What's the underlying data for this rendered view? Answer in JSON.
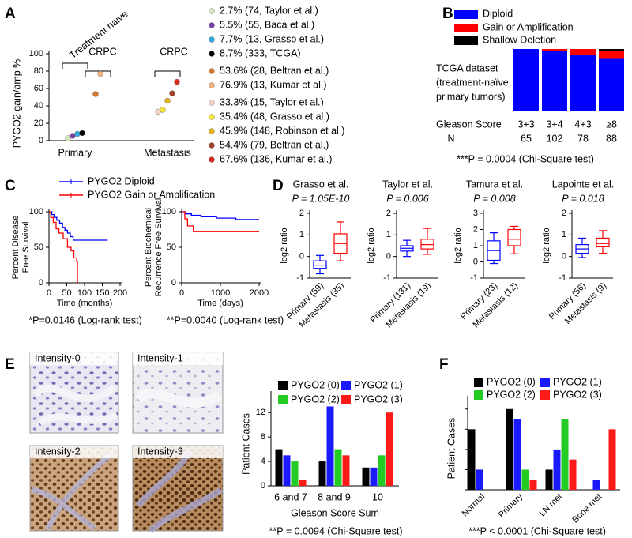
{
  "chart_data": [
    {
      "panel": "A",
      "type": "scatter",
      "ylabel": "PYGO2 gain/amp %",
      "categories": [
        "Primary",
        null,
        "Metastasis"
      ],
      "brackets": [
        "Treatment naive",
        "CRPC",
        "CRPC"
      ],
      "ylim": [
        0,
        100
      ],
      "yticks": [
        0,
        20,
        40,
        60,
        80,
        100
      ],
      "series": [
        {
          "name": "2.7% (74, Taylor et al.)",
          "color": "#d3e6bb",
          "values": [
            2.7,
            null,
            null
          ]
        },
        {
          "name": "5.5% (55, Baca et al.)",
          "color": "#7b3fa8",
          "values": [
            5.5,
            null,
            null
          ]
        },
        {
          "name": "7.7% (13, Grasso et al.)",
          "color": "#2fa8e0",
          "values": [
            7.7,
            null,
            null
          ]
        },
        {
          "name": "8.7% (333, TCGA)",
          "color": "#000000",
          "values": [
            8.7,
            null,
            null
          ]
        },
        {
          "name": "53.6% (28, Beltran et al.)",
          "color": "#d9772a",
          "values": [
            null,
            53.6,
            null
          ]
        },
        {
          "name": "76.9% (13, Kumar et al.)",
          "color": "#f4b27e",
          "values": [
            null,
            76.9,
            null
          ]
        },
        {
          "name": "33.3% (15, Taylor et al.)",
          "color": "#f4d2c6",
          "values": [
            null,
            null,
            33.3
          ]
        },
        {
          "name": "35.4% (48, Grasso et al.)",
          "color": "#f7e43a",
          "values": [
            null,
            null,
            35.4
          ]
        },
        {
          "name": "45.9% (148, Robinson  et al.)",
          "color": "#e8b21f",
          "values": [
            null,
            null,
            45.9
          ]
        },
        {
          "name": "54.4% (79, Beltran et al.)",
          "color": "#a2402a",
          "values": [
            null,
            null,
            54.4
          ]
        },
        {
          "name": "67.6% (136, Kumar et al.)",
          "color": "#dc2a1c",
          "values": [
            null,
            null,
            67.6
          ]
        }
      ]
    },
    {
      "panel": "B",
      "type": "bar",
      "stacked": true,
      "annotation": [
        "TCGA dataset",
        "(treatment-naïve,",
        "primary tumors)"
      ],
      "xlabel": "Gleason Score",
      "categories": [
        "3+3",
        "3+4",
        "4+3",
        "≥8"
      ],
      "count_label": "N",
      "counts": [
        65,
        102,
        78,
        88
      ],
      "ylim": [
        0,
        100
      ],
      "series": [
        {
          "name": "Diploid",
          "color": "#0000ff",
          "values": [
            100,
            97,
            90,
            84
          ]
        },
        {
          "name": "Gain or Amplification",
          "color": "#ff0000",
          "values": [
            0,
            3,
            10,
            13
          ]
        },
        {
          "name": "Shallow Deletion",
          "color": "#000000",
          "values": [
            0,
            0,
            0,
            3
          ]
        }
      ],
      "note": "***P = 0.0004  (Chi-Square  test)"
    },
    {
      "panel": "C",
      "type": "line",
      "ylabel": [
        "Percent Disease",
        "Free Survival"
      ],
      "xlabel": "Time (months)",
      "xlim": [
        0,
        200
      ],
      "xticks": [
        0,
        50,
        100,
        150,
        200
      ],
      "ylim": [
        0,
        100
      ],
      "yticks": [
        0,
        50,
        100
      ],
      "series": [
        {
          "name": "PYGO2  Diploid",
          "color": "#0000ff",
          "x": [
            0,
            8,
            8,
            15,
            15,
            22,
            22,
            30,
            30,
            38,
            38,
            45,
            45,
            52,
            52,
            60,
            60,
            68,
            68,
            165
          ],
          "values": [
            100,
            100,
            96,
            96,
            92,
            92,
            88,
            88,
            84,
            84,
            78,
            78,
            74,
            74,
            70,
            70,
            65,
            65,
            60,
            60
          ]
        },
        {
          "name": "PYGO2  Gain or Amplification",
          "color": "#ff0000",
          "x": [
            0,
            5,
            5,
            12,
            12,
            20,
            20,
            28,
            28,
            40,
            40,
            52,
            52,
            62,
            62,
            70,
            70,
            78,
            78,
            80,
            80
          ],
          "values": [
            100,
            100,
            92,
            92,
            85,
            85,
            76,
            76,
            70,
            70,
            62,
            62,
            50,
            50,
            45,
            45,
            35,
            35,
            30,
            30,
            0
          ]
        }
      ],
      "note": "*P=0.0146 (Log-rank test)"
    },
    {
      "type": "line",
      "ylabel": [
        "Percent Biochemical",
        "Recurrence Free Survival"
      ],
      "xlabel": "Time (days)",
      "xlim": [
        0,
        2000
      ],
      "xticks": [
        0,
        1000,
        2000
      ],
      "ylim": [
        0,
        100
      ],
      "yticks": [
        0,
        50,
        100
      ],
      "series": [
        {
          "color": "#0000ff",
          "x": [
            0,
            100,
            100,
            250,
            250,
            500,
            500,
            900,
            900,
            1400,
            1400,
            2000
          ],
          "values": [
            100,
            100,
            97,
            97,
            95,
            95,
            93,
            93,
            91,
            91,
            89,
            89
          ]
        },
        {
          "color": "#ff0000",
          "x": [
            0,
            80,
            80,
            150,
            150,
            300,
            300,
            2000
          ],
          "values": [
            100,
            100,
            90,
            90,
            80,
            80,
            72,
            72
          ]
        }
      ],
      "note": "**P=0.0040 (Log-rank test)"
    },
    {
      "panel": "D",
      "type": "box",
      "title": "Grasso et al.",
      "subtitle": "P = 1.05E-10",
      "ylabel": "log2 ratio",
      "categories": [
        "Primary (59)",
        "Metastasis (35)"
      ],
      "ylim": [
        -1,
        2
      ],
      "yticks": [
        -1,
        0,
        1,
        2
      ],
      "boxes": [
        {
          "color": "#0000ff",
          "min": -0.8,
          "q1": -0.55,
          "median": -0.4,
          "q3": -0.2,
          "max": 0.05
        },
        {
          "color": "#ff0000",
          "min": -0.2,
          "q1": 0.15,
          "median": 0.6,
          "q3": 1.05,
          "max": 1.6
        }
      ]
    },
    {
      "type": "box",
      "title": "Taylor et al.",
      "subtitle": "P = 0.006",
      "ylabel": "log2 ratio",
      "categories": [
        "Primary (131)",
        "Metastasis (19)"
      ],
      "ylim": [
        -1,
        2
      ],
      "yticks": [
        -1,
        0,
        1,
        2
      ],
      "boxes": [
        {
          "color": "#0000ff",
          "min": 0.0,
          "q1": 0.25,
          "median": 0.38,
          "q3": 0.5,
          "max": 0.75
        },
        {
          "color": "#ff0000",
          "min": 0.1,
          "q1": 0.35,
          "median": 0.55,
          "q3": 0.8,
          "max": 1.3
        }
      ]
    },
    {
      "type": "box",
      "title": "Tamura et al.",
      "subtitle": "P = 0.008",
      "ylabel": "log2 ratio",
      "categories": [
        "Primary (23)",
        "Metastasis (12)"
      ],
      "ylim": [
        -1,
        3
      ],
      "yticks": [
        -1,
        0,
        1,
        2,
        3
      ],
      "boxes": [
        {
          "color": "#0000ff",
          "min": -0.1,
          "q1": 0.1,
          "median": 0.7,
          "q3": 1.3,
          "max": 1.8
        },
        {
          "color": "#ff0000",
          "min": 0.5,
          "q1": 1.0,
          "median": 1.4,
          "q3": 2.0,
          "max": 2.2
        }
      ]
    },
    {
      "type": "box",
      "title": "Lapointe et al.",
      "subtitle": "P = 0.018",
      "ylabel": "log2 ratio",
      "categories": [
        "Primary (56)",
        "Metastasis (9)"
      ],
      "ylim": [
        -1,
        2
      ],
      "yticks": [
        -1,
        0,
        1,
        2
      ],
      "boxes": [
        {
          "color": "#0000ff",
          "min": -0.05,
          "q1": 0.15,
          "median": 0.35,
          "q3": 0.55,
          "max": 0.85
        },
        {
          "color": "#ff0000",
          "min": 0.15,
          "q1": 0.45,
          "median": 0.6,
          "q3": 0.85,
          "max": 1.2
        }
      ]
    },
    {
      "panel": "E",
      "type": "bar",
      "images": [
        "Intensity-0",
        "Intensity-1",
        "Intensity-2",
        "Intensity-3"
      ],
      "ylabel": "Patient Cases",
      "xlabel": "Gleason Score Sum",
      "categories": [
        "6 and 7",
        "8 and 9",
        "10"
      ],
      "ylim": [
        0,
        15
      ],
      "yticks": [
        0,
        4,
        8,
        12
      ],
      "series": [
        {
          "name": "PYGO2 (0)",
          "color": "#000000",
          "values": [
            6,
            4,
            3
          ]
        },
        {
          "name": "PYGO2 (1)",
          "color": "#1a1aff",
          "values": [
            5,
            13,
            3
          ]
        },
        {
          "name": "PYGO2 (2)",
          "color": "#22cc22",
          "values": [
            4,
            6,
            5
          ]
        },
        {
          "name": "PYGO2 (3)",
          "color": "#ff1a1a",
          "values": [
            1,
            5,
            12
          ]
        }
      ],
      "note": "**P = 0.0094 (Chi-Square test)"
    },
    {
      "panel": "F",
      "type": "bar",
      "ylabel": "Patient Cases",
      "categories": [
        "Normal",
        "Primary",
        "LN met",
        "Bone met"
      ],
      "ylim": [
        0,
        9
      ],
      "yticks": [
        0,
        2,
        4,
        6,
        8
      ],
      "ytick_labels": false,
      "series": [
        {
          "name": "PYGO2 (0)",
          "color": "#000000",
          "values": [
            6,
            8,
            2,
            0
          ]
        },
        {
          "name": "PYGO2 (1)",
          "color": "#1a1aff",
          "values": [
            2,
            7,
            4,
            1
          ]
        },
        {
          "name": "PYGO2 (2)",
          "color": "#22cc22",
          "values": [
            0,
            2,
            7,
            0
          ]
        },
        {
          "name": "PYGO2 (3)",
          "color": "#ff1a1a",
          "values": [
            0,
            1,
            3,
            6
          ]
        }
      ],
      "note": "***P < 0.0001 (Chi-Square test)"
    }
  ]
}
